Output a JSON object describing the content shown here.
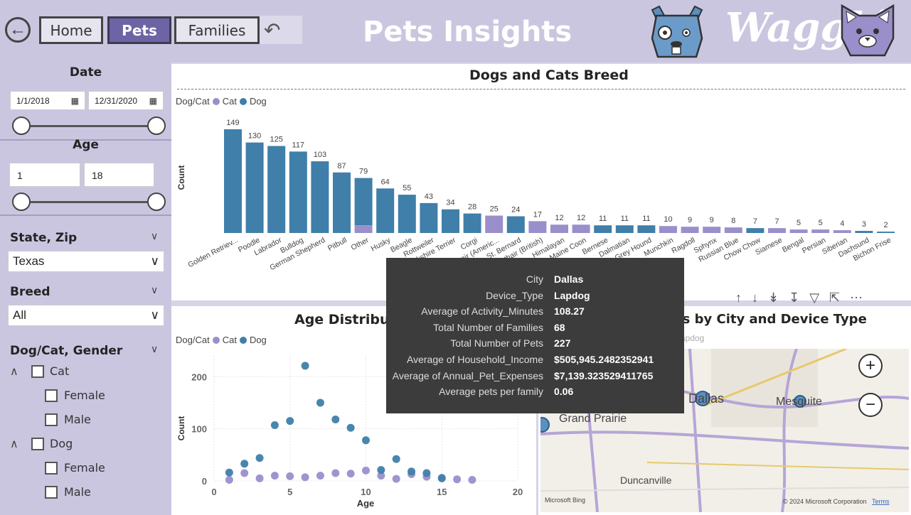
{
  "header": {
    "title": "Pets Insights",
    "logo_text": "Wagglé",
    "nav": [
      {
        "label": "Home",
        "active": false
      },
      {
        "label": "Pets",
        "active": true
      },
      {
        "label": "Families",
        "active": false
      }
    ],
    "icons": [
      "back-arrow-icon",
      "undo-icon",
      "dog-logo-icon",
      "cat-logo-icon"
    ]
  },
  "sidebar": {
    "date_label": "Date",
    "date_start": "1/1/2018",
    "date_end": "12/31/2020",
    "age_label": "Age",
    "age_min": "1",
    "age_max": "18",
    "state_label": "State, Zip",
    "state_value": "Texas",
    "breed_label": "Breed",
    "breed_value": "All",
    "gender_label": "Dog/Cat, Gender",
    "tree": [
      {
        "label": "Cat",
        "children": [
          "Female",
          "Male"
        ]
      },
      {
        "label": "Dog",
        "children": [
          "Female",
          "Male"
        ]
      }
    ]
  },
  "breed_chart": {
    "title": "Dogs and Cats Breed",
    "legend_title": "Dog/Cat",
    "legend": [
      "Cat",
      "Dog"
    ],
    "colors": {
      "Cat": "#9a8fcb",
      "Dog": "#3f7fa9"
    }
  },
  "age_chart": {
    "title": "Age Distribution",
    "legend_title": "Dog/Cat",
    "legend": [
      "Cat",
      "Dog"
    ]
  },
  "map": {
    "title": "Statistics by City and Device Type",
    "legend_hint": "Device_Type ● Lapcat ● Lapdog",
    "cities": [
      "Dallas",
      "Grand Prairie",
      "Mesquite",
      "Duncanville"
    ],
    "credit": "© 2024 Microsoft Corporation",
    "terms": "Terms",
    "bing": "Microsoft Bing",
    "zoom_in": "+",
    "zoom_out": "−"
  },
  "tooltip": {
    "rows": [
      {
        "k": "City",
        "v": "Dallas"
      },
      {
        "k": "Device_Type",
        "v": "Lapdog"
      },
      {
        "k": "Average of Activity_Minutes",
        "v": "108.27"
      },
      {
        "k": "Total Number of Families",
        "v": "68"
      },
      {
        "k": "Total Number of Pets",
        "v": "227"
      },
      {
        "k": "Average of Household_Income",
        "v": "$505,945.2482352941"
      },
      {
        "k": "Average of Annual_Pet_Expenses",
        "v": "$7,139.323529411765"
      },
      {
        "k": "Average pets per family",
        "v": "0.06"
      }
    ]
  },
  "chart_data": [
    {
      "type": "bar",
      "title": "Dogs and Cats Breed",
      "ylabel": "Count",
      "xlabel": "",
      "categories": [
        "Golden Retriever",
        "Poodle",
        "Labrador",
        "Bulldog",
        "German Shepherd",
        "Pitbull",
        "Other",
        "Husky",
        "Beagle",
        "Rottweiler",
        "Yorkshire Terrier",
        "Corgi",
        "Shorthair (American)",
        "St. Bernard",
        "Shorthair (British)",
        "Himalayan",
        "Maine Coon",
        "Bernese",
        "Dalmatian",
        "Grey Hound",
        "Munchkin",
        "Ragdoll",
        "Sphynx",
        "Russian Blue",
        "Chow Chow",
        "Siamese",
        "Bengal",
        "Persian",
        "Siberian",
        "Dachsund",
        "Bichon Frise"
      ],
      "tick_labels": [
        "Golden Retriev...",
        "Poodle",
        "Labrador",
        "Bulldog",
        "German Shepherd",
        "Pitbull",
        "Other",
        "Husky",
        "Beagle",
        "Rottweiler",
        "Yorkshire Terrier",
        "Corgi",
        "Shorthair (Americ...",
        "St. Bernard",
        "Shorthair (British)",
        "Himalayan",
        "Maine Coon",
        "Bernese",
        "Dalmatian",
        "Grey Hound",
        "Munchkin",
        "Ragdoll",
        "Sphynx",
        "Russian Blue",
        "Chow Chow",
        "Siamese",
        "Bengal",
        "Persian",
        "Siberian",
        "Dachsund",
        "Bichon Frise"
      ],
      "values": [
        149,
        130,
        125,
        117,
        103,
        87,
        79,
        64,
        55,
        43,
        34,
        28,
        25,
        24,
        17,
        12,
        12,
        11,
        11,
        11,
        10,
        9,
        9,
        8,
        7,
        7,
        5,
        5,
        4,
        3,
        2
      ],
      "series": [
        {
          "name": "Dog",
          "values": [
            149,
            130,
            125,
            117,
            103,
            87,
            68,
            64,
            55,
            43,
            34,
            28,
            0,
            24,
            0,
            0,
            0,
            11,
            11,
            11,
            0,
            0,
            0,
            0,
            7,
            0,
            0,
            0,
            0,
            3,
            2
          ]
        },
        {
          "name": "Cat",
          "values": [
            0,
            0,
            0,
            0,
            0,
            0,
            11,
            0,
            0,
            0,
            0,
            0,
            25,
            0,
            17,
            12,
            12,
            0,
            0,
            0,
            10,
            9,
            9,
            8,
            0,
            7,
            5,
            5,
            4,
            0,
            0
          ]
        }
      ],
      "ylim": [
        0,
        160
      ],
      "legend_position": "top-left",
      "grid": false
    },
    {
      "type": "scatter",
      "title": "Age Distribution",
      "xlabel": "Age",
      "ylabel": "Count",
      "xlim": [
        0,
        20
      ],
      "ylim": [
        0,
        240
      ],
      "xticks": [
        0,
        5,
        10,
        15,
        20
      ],
      "yticks": [
        0,
        100,
        200
      ],
      "series": [
        {
          "name": "Dog",
          "x": [
            1,
            2,
            3,
            4,
            5,
            6,
            7,
            8,
            9,
            10,
            11,
            12,
            13,
            14,
            15
          ],
          "y": [
            16,
            33,
            44,
            107,
            115,
            221,
            150,
            118,
            102,
            78,
            21,
            42,
            18,
            15,
            5
          ]
        },
        {
          "name": "Cat",
          "x": [
            1,
            2,
            3,
            4,
            5,
            6,
            7,
            8,
            9,
            10,
            11,
            12,
            13,
            14,
            15,
            16,
            17
          ],
          "y": [
            2,
            15,
            5,
            10,
            9,
            7,
            10,
            15,
            14,
            20,
            10,
            4,
            13,
            8,
            6,
            3,
            2
          ]
        }
      ],
      "grid": true,
      "legend_position": "top-left"
    }
  ]
}
